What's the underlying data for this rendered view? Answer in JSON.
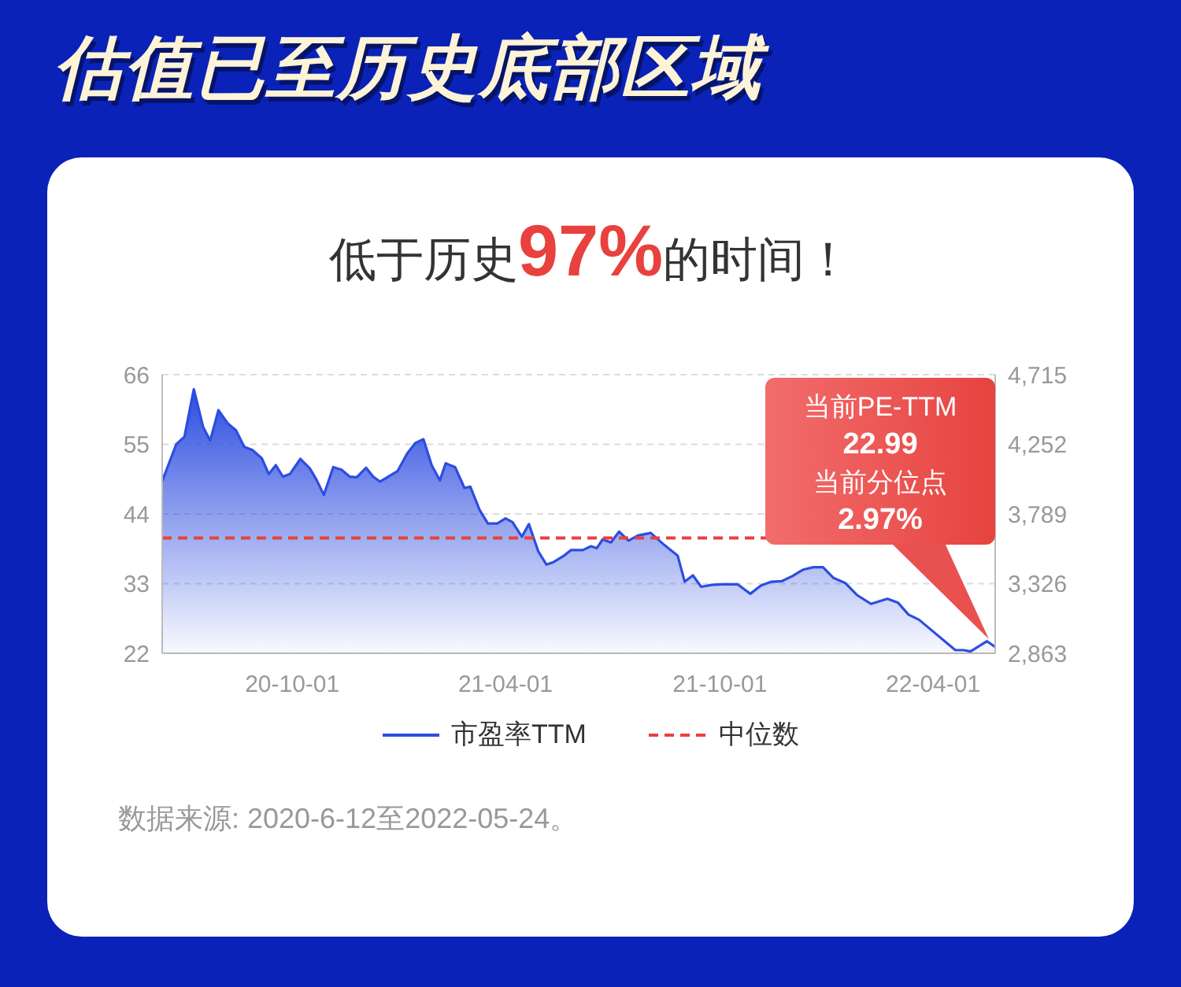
{
  "chart_data": {
    "type": "area",
    "title": "估值已至历史底部区域",
    "subtitle": "低于历史97%的时间！",
    "x": [
      "2020-06-12",
      "2020-06-24",
      "2020-07-01",
      "2020-07-09",
      "2020-07-17",
      "2020-07-23",
      "2020-07-30",
      "2020-08-07",
      "2020-08-14",
      "2020-08-21",
      "2020-08-28",
      "2020-09-05",
      "2020-09-11",
      "2020-09-17",
      "2020-09-23",
      "2020-09-29",
      "2020-10-08",
      "2020-10-16",
      "2020-10-22",
      "2020-10-28",
      "2020-11-05",
      "2020-11-12",
      "2020-11-19",
      "2020-11-25",
      "2020-12-03",
      "2020-12-09",
      "2020-12-15",
      "2020-12-22",
      "2020-12-30",
      "2021-01-07",
      "2021-01-14",
      "2021-01-21",
      "2021-01-28",
      "2021-02-04",
      "2021-02-09",
      "2021-02-17",
      "2021-02-25",
      "2021-03-02",
      "2021-03-10",
      "2021-03-17",
      "2021-03-25",
      "2021-04-01",
      "2021-04-07",
      "2021-04-15",
      "2021-04-21",
      "2021-04-29",
      "2021-05-06",
      "2021-05-12",
      "2021-05-20",
      "2021-05-27",
      "2021-06-06",
      "2021-06-13",
      "2021-06-18",
      "2021-06-23",
      "2021-06-30",
      "2021-07-07",
      "2021-07-15",
      "2021-07-23",
      "2021-08-03",
      "2021-08-14",
      "2021-08-26",
      "2021-09-01",
      "2021-09-08",
      "2021-09-15",
      "2021-09-24",
      "2021-10-03",
      "2021-10-16",
      "2021-10-27",
      "2021-11-05",
      "2021-11-14",
      "2021-11-23",
      "2021-12-02",
      "2021-12-11",
      "2021-12-20",
      "2021-12-28",
      "2022-01-06",
      "2022-01-16",
      "2022-01-26",
      "2022-02-07",
      "2022-02-21",
      "2022-03-02",
      "2022-03-11",
      "2022-03-20",
      "2022-04-20",
      "2022-04-27",
      "2022-05-03",
      "2022-05-17",
      "2022-05-24"
    ],
    "series": [
      {
        "name": "市盈率TTM",
        "color": "#2d4de0",
        "values": [
          49.2,
          55,
          56.2,
          63.7,
          57.7,
          55.6,
          60.4,
          58.3,
          57.2,
          54.6,
          54.1,
          52.8,
          50.3,
          51.7,
          49.9,
          50.3,
          52.7,
          51.2,
          49.3,
          47,
          51.4,
          51,
          49.9,
          49.8,
          51.3,
          49.9,
          49.1,
          49.9,
          50.8,
          53.5,
          55.2,
          55.8,
          51.7,
          49.3,
          52,
          51.4,
          48.1,
          48.3,
          44.6,
          42.5,
          42.5,
          43.3,
          42.7,
          40.4,
          42.4,
          38.1,
          36,
          36.4,
          37.3,
          38.3,
          38.3,
          38.9,
          38.6,
          40,
          39.5,
          41.2,
          39.8,
          40.6,
          41,
          39.2,
          37.4,
          33.3,
          34.3,
          32.5,
          32.8,
          32.9,
          32.9,
          31.4,
          32.7,
          33.3,
          33.4,
          34.2,
          35.2,
          35.6,
          35.6,
          33.9,
          33.1,
          31.2,
          29.8,
          30.6,
          30,
          28.1,
          27.3,
          22.5,
          22.5,
          22.3,
          23.9,
          22.99
        ]
      }
    ],
    "xlim": [
      "2020-06-12",
      "2022-05-24"
    ],
    "xticks": [
      {
        "value": "2020-10-01",
        "label": "20-10-01"
      },
      {
        "value": "2021-04-01",
        "label": "21-04-01"
      },
      {
        "value": "2021-10-01",
        "label": "21-10-01"
      },
      {
        "value": "2022-04-01",
        "label": "22-04-01"
      }
    ],
    "ylim": [
      22,
      66
    ],
    "yticks": [
      22,
      33,
      44,
      55,
      66
    ],
    "y2lim": [
      2863,
      4715
    ],
    "y2ticks": [
      {
        "value": 2863,
        "label": "2,863"
      },
      {
        "value": 3326,
        "label": "3,326"
      },
      {
        "value": 3789,
        "label": "3,789"
      },
      {
        "value": 4252,
        "label": "4,252"
      },
      {
        "value": 4715,
        "label": "4,715"
      }
    ],
    "ref_lines": [
      {
        "axis": "y",
        "value": 40.2,
        "label": "中位数",
        "color": "#e8413e",
        "line_style": "dashed"
      }
    ],
    "annotations": [
      "当前PE-TTM\n22.99\n当前分位点\n2.97%",
      "数据来源: 2020-6-12至2022-05-24。"
    ],
    "grid": "y",
    "legend": "bottom"
  }
}
